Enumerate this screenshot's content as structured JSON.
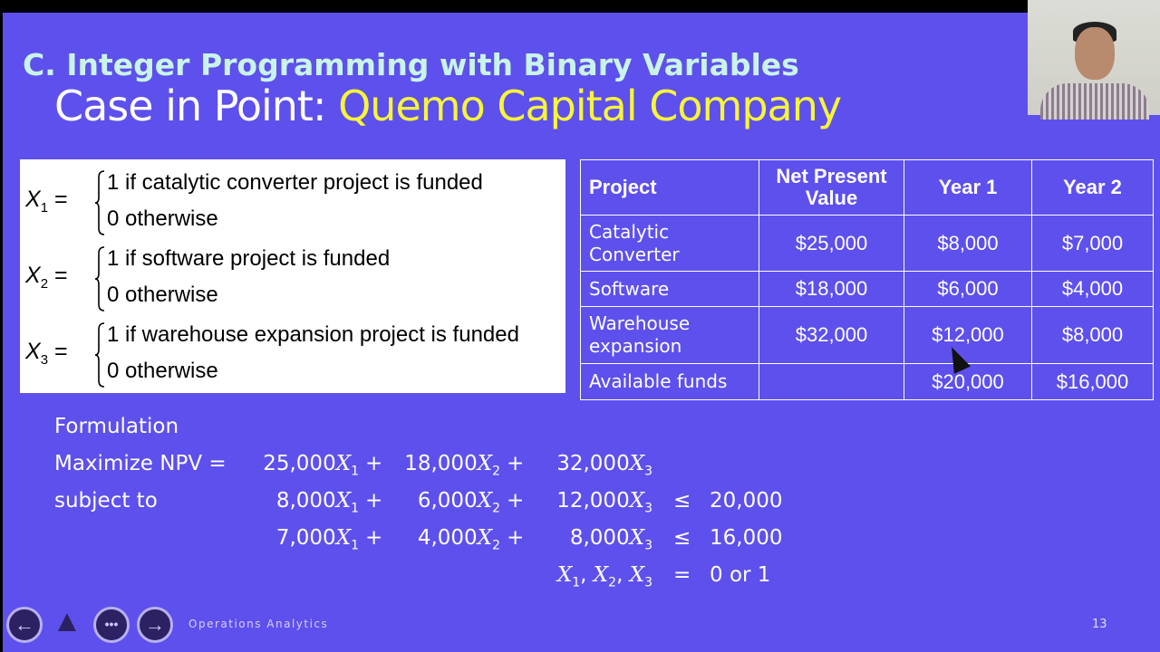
{
  "slide": {
    "section_title": "C. Integer Programming with Binary Variables",
    "title_prefix": "Case in Point: ",
    "title_highlight": "Quemo Capital Company",
    "colors": {
      "background": "#5e50ec",
      "section_title": "#c9f4ea",
      "highlight": "#f6f53a"
    },
    "definitions": [
      {
        "var": "X",
        "sub": "1",
        "eq": " =",
        "line1": "1 if catalytic converter project is funded",
        "line2": "0 otherwise"
      },
      {
        "var": "X",
        "sub": "2",
        "eq": " =",
        "line1": "1 if software project is funded",
        "line2": "0 otherwise"
      },
      {
        "var": "X",
        "sub": "3",
        "eq": " =",
        "line1": "1 if warehouse expansion project is funded",
        "line2": "0 otherwise"
      }
    ],
    "table": {
      "headers": [
        "Project",
        "Net Present Value",
        "Year 1",
        "Year 2"
      ],
      "rows": [
        [
          "Catalytic Converter",
          "$25,000",
          "$8,000",
          "$7,000"
        ],
        [
          "Software",
          "$18,000",
          "$6,000",
          "$4,000"
        ],
        [
          "Warehouse expansion",
          "$32,000",
          "$12,000",
          "$8,000"
        ],
        [
          "Available funds",
          "",
          "$20,000",
          "$16,000"
        ]
      ]
    },
    "formulation": {
      "heading": "Formulation",
      "objective_label": "Maximize NPV =",
      "subject_label": "subject to",
      "objective": [
        "25,000",
        "18,000",
        "32,000"
      ],
      "c1": [
        "8,000",
        "6,000",
        "12,000",
        "20,000"
      ],
      "c2": [
        "7,000",
        "4,000",
        "8,000",
        "16,000"
      ],
      "plus": "+",
      "leq": "≤",
      "eq": "=",
      "binary": "0 or 1",
      "var": "X",
      "subs": [
        "1",
        "2",
        "3"
      ]
    },
    "footer": "Operations Analytics",
    "page_number": "13"
  },
  "controls": {
    "prev": "←",
    "pointer": "▲",
    "more": "•••",
    "next": "→"
  }
}
